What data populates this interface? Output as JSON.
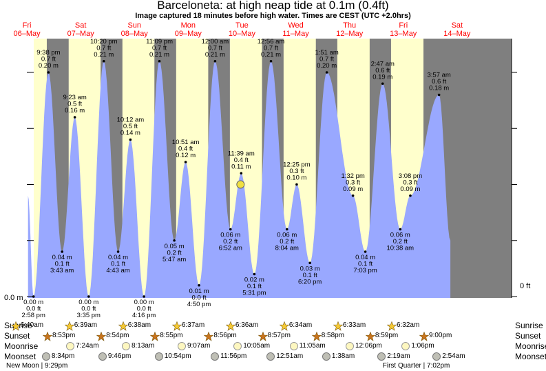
{
  "header": {
    "title": "Barceloneta: at high  neap tide at 0.1m (0.4ft)",
    "subtitle": "Image captured 18 minutes before high water. Times are CEST (UTC +2.0hrs)"
  },
  "chart_data": {
    "type": "area",
    "x_axis": "time (06-May 00:00 to 14-May 24:00, CEST)",
    "y_units": "m",
    "ylim": [
      0.0,
      0.25
    ],
    "axis_labels": {
      "left": "0.0 m",
      "right": "0 ft"
    },
    "days": [
      {
        "weekday": "Fri",
        "date": "06–May"
      },
      {
        "weekday": "Sat",
        "date": "07–May"
      },
      {
        "weekday": "Sun",
        "date": "08–May"
      },
      {
        "weekday": "Mon",
        "date": "09–May"
      },
      {
        "weekday": "Tue",
        "date": "10–May"
      },
      {
        "weekday": "Wed",
        "date": "11–May"
      },
      {
        "weekday": "Thu",
        "date": "12–May"
      },
      {
        "weekday": "Fri",
        "date": "13–May"
      },
      {
        "weekday": "Sat",
        "date": "14–May"
      }
    ],
    "daylight": [
      {
        "sunrise": "6:40am",
        "sunset": "8:53pm"
      },
      {
        "sunrise": "6:39am",
        "sunset": "8:54pm"
      },
      {
        "sunrise": "6:38am",
        "sunset": "8:55pm"
      },
      {
        "sunrise": "6:37am",
        "sunset": "8:56pm"
      },
      {
        "sunrise": "6:36am",
        "sunset": "8:57pm"
      },
      {
        "sunrise": "6:34am",
        "sunset": "8:58pm"
      },
      {
        "sunrise": "6:33am",
        "sunset": "8:59pm"
      },
      {
        "sunrise": "6:32am",
        "sunset": "9:00pm"
      }
    ],
    "tides": [
      {
        "day": 0,
        "time": "2:58 pm",
        "type": "low",
        "m": "0.00 m",
        "ft": "0.0 ft",
        "v": 0.0
      },
      {
        "day": 0,
        "time": "9:38 pm",
        "type": "high",
        "m": "0.20 m",
        "ft": "0.7 ft",
        "v": 0.2
      },
      {
        "day": 1,
        "time": "3:43 am",
        "type": "low",
        "m": "0.04 m",
        "ft": "0.1 ft",
        "v": 0.04
      },
      {
        "day": 1,
        "time": "9:23 am",
        "type": "high",
        "m": "0.16 m",
        "ft": "0.5 ft",
        "v": 0.16
      },
      {
        "day": 1,
        "time": "3:35 pm",
        "type": "low",
        "m": "0.00 m",
        "ft": "0.0 ft",
        "v": 0.0
      },
      {
        "day": 1,
        "time": "10:20 pm",
        "type": "high",
        "m": "0.21 m",
        "ft": "0.7 ft",
        "v": 0.21
      },
      {
        "day": 2,
        "time": "4:43 am",
        "type": "low",
        "m": "0.04 m",
        "ft": "0.1 ft",
        "v": 0.04
      },
      {
        "day": 2,
        "time": "10:12 am",
        "type": "high",
        "m": "0.14 m",
        "ft": "0.5 ft",
        "v": 0.14
      },
      {
        "day": 2,
        "time": "4:16 pm",
        "type": "low",
        "m": "0.00 m",
        "ft": "0.0 ft",
        "v": 0.0
      },
      {
        "day": 2,
        "time": "11:09 pm",
        "type": "high",
        "m": "0.21 m",
        "ft": "0.7 ft",
        "v": 0.21
      },
      {
        "day": 3,
        "time": "5:47 am",
        "type": "low",
        "m": "0.05 m",
        "ft": "0.2 ft",
        "v": 0.05
      },
      {
        "day": 3,
        "time": "10:51 am",
        "type": "high",
        "m": "0.12 m",
        "ft": "0.4 ft",
        "v": 0.12
      },
      {
        "day": 3,
        "time": "4:50 pm",
        "type": "low",
        "m": "0.01 m",
        "ft": "0.0 ft",
        "v": 0.01
      },
      {
        "day": 4,
        "time": "12:00 am",
        "type": "high",
        "m": "0.21 m",
        "ft": "0.7 ft",
        "v": 0.21
      },
      {
        "day": 4,
        "time": "6:52 am",
        "type": "low",
        "m": "0.06 m",
        "ft": "0.2 ft",
        "v": 0.06
      },
      {
        "day": 4,
        "time": "11:39 am",
        "type": "high",
        "m": "0.11 m",
        "ft": "0.4 ft",
        "v": 0.11
      },
      {
        "day": 4,
        "time": "5:31 pm",
        "type": "low",
        "m": "0.02 m",
        "ft": "0.1 ft",
        "v": 0.02
      },
      {
        "day": 5,
        "time": "12:56 am",
        "type": "high",
        "m": "0.21 m",
        "ft": "0.7 ft",
        "v": 0.21
      },
      {
        "day": 5,
        "time": "8:04 am",
        "type": "low",
        "m": "0.06 m",
        "ft": "0.2 ft",
        "v": 0.06
      },
      {
        "day": 5,
        "time": "12:25 pm",
        "type": "high",
        "m": "0.10 m",
        "ft": "0.3 ft",
        "v": 0.1
      },
      {
        "day": 5,
        "time": "6:20 pm",
        "type": "low",
        "m": "0.03 m",
        "ft": "0.1 ft",
        "v": 0.03
      },
      {
        "day": 6,
        "time": "1:51 am",
        "type": "high",
        "m": "0.20 m",
        "ft": "0.7 ft",
        "v": 0.2
      },
      {
        "day": 6,
        "time": "1:32 pm",
        "type": "high",
        "m": "0.09 m",
        "ft": "0.3 ft",
        "v": 0.09
      },
      {
        "day": 6,
        "time": "7:03 pm",
        "type": "low",
        "m": "0.04 m",
        "ft": "0.1 ft",
        "v": 0.04
      },
      {
        "day": 7,
        "time": "2:47 am",
        "type": "high",
        "m": "0.19 m",
        "ft": "0.6 ft",
        "v": 0.19
      },
      {
        "day": 7,
        "time": "10:38 am",
        "type": "low",
        "m": "0.06 m",
        "ft": "0.2 ft",
        "v": 0.06
      },
      {
        "day": 7,
        "time": "3:08 pm",
        "type": "high",
        "m": "0.09 m",
        "ft": "0.3 ft",
        "v": 0.09
      },
      {
        "day": 8,
        "time": "3:57 am",
        "type": "high",
        "m": "0.18 m",
        "ft": "0.6 ft",
        "v": 0.18
      }
    ],
    "current": {
      "day": 4,
      "time": "11:21 am",
      "v": 0.1
    },
    "curve_start": {
      "day": 0,
      "time": "12:30 pm",
      "v": 0.09
    },
    "curve_end": {
      "day": 8,
      "time": "9:00 am",
      "v": 0.05
    }
  },
  "bottom": {
    "labels": {
      "sunrise": "Sunrise",
      "sunset": "Sunset",
      "moonrise": "Moonrise",
      "moonset": "Moonset"
    },
    "sunrise": [
      {
        "day": 0,
        "time": "6:40am"
      },
      {
        "day": 1,
        "time": "6:39am"
      },
      {
        "day": 2,
        "time": "6:38am"
      },
      {
        "day": 3,
        "time": "6:37am"
      },
      {
        "day": 4,
        "time": "6:36am"
      },
      {
        "day": 5,
        "time": "6:34am"
      },
      {
        "day": 6,
        "time": "6:33am"
      },
      {
        "day": 7,
        "time": "6:32am"
      }
    ],
    "sunset": [
      {
        "day": 0,
        "time": "8:53pm"
      },
      {
        "day": 1,
        "time": "8:54pm"
      },
      {
        "day": 2,
        "time": "8:55pm"
      },
      {
        "day": 3,
        "time": "8:56pm"
      },
      {
        "day": 4,
        "time": "8:57pm"
      },
      {
        "day": 5,
        "time": "8:58pm"
      },
      {
        "day": 6,
        "time": "8:59pm"
      },
      {
        "day": 7,
        "time": "9:00pm"
      }
    ],
    "moonrise": [
      {
        "day": 1,
        "time": "7:24am"
      },
      {
        "day": 2,
        "time": "8:13am"
      },
      {
        "day": 3,
        "time": "9:07am"
      },
      {
        "day": 4,
        "time": "10:05am"
      },
      {
        "day": 5,
        "time": "11:05am"
      },
      {
        "day": 6,
        "time": "12:06pm"
      },
      {
        "day": 7,
        "time": "1:06pm"
      }
    ],
    "moonset": [
      {
        "day": 0,
        "time": "8:34pm"
      },
      {
        "day": 1,
        "time": "9:46pm"
      },
      {
        "day": 2,
        "time": "10:54pm"
      },
      {
        "day": 3,
        "time": "11:56pm"
      },
      {
        "day": 5,
        "time": "12:51am"
      },
      {
        "day": 6,
        "time": "1:38am"
      },
      {
        "day": 7,
        "time": "2:19am"
      },
      {
        "day": 8,
        "time": "2:54am"
      }
    ],
    "phases": [
      {
        "day": 0,
        "text": "New Moon | 9:29pm"
      },
      {
        "day": 7,
        "text": "First Quarter | 7:02pm"
      }
    ]
  },
  "colors": {
    "night": "#7f7f7f",
    "day": "#ffffcc",
    "water": "#99a8ff",
    "day_label": "#ff0000",
    "sun_rise": "#f5c935",
    "sun_set": "#c8741e",
    "current_marker": "#f0e040"
  }
}
